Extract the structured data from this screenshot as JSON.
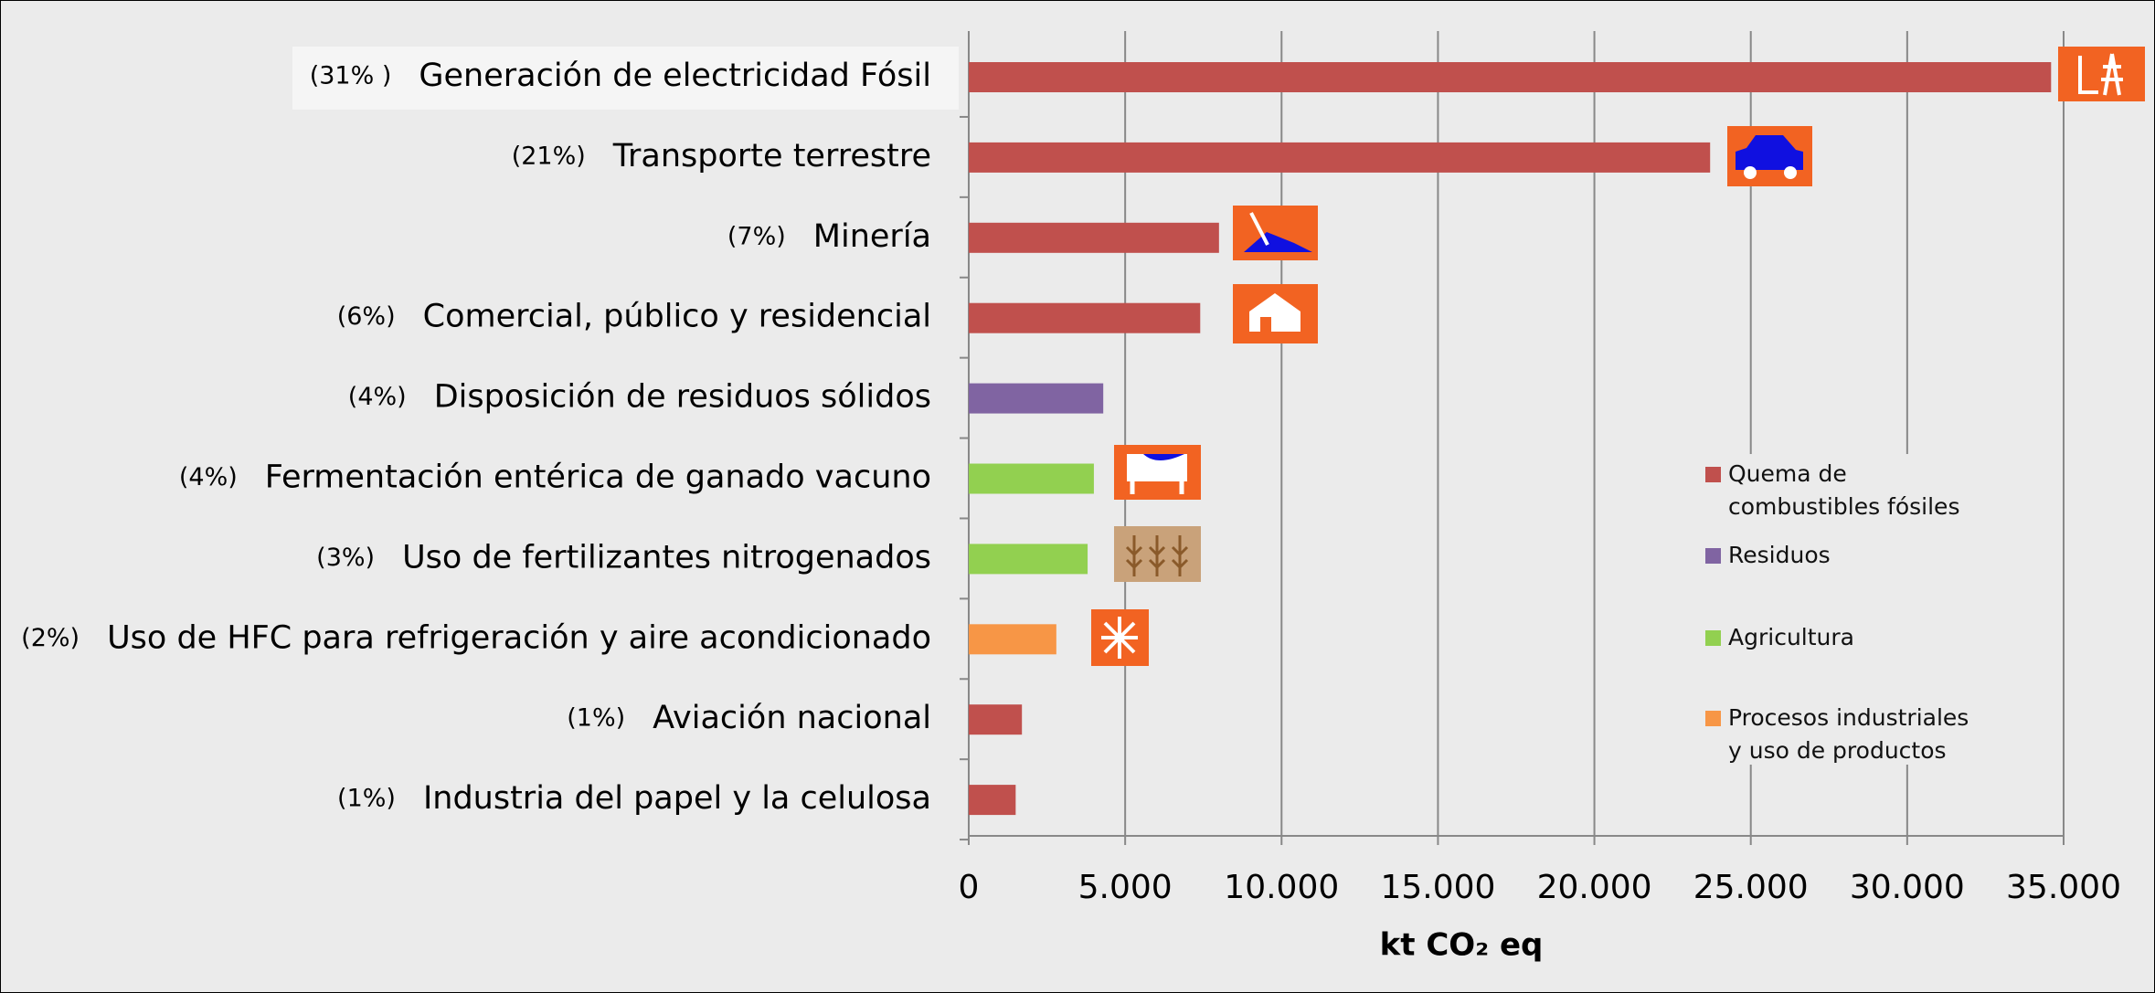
{
  "chart_data": {
    "type": "hbar",
    "categories": [
      "Generación de electricidad Fósil",
      "Transporte terrestre",
      "Minería",
      "Comercial, público y residencial",
      "Disposición de residuos sólidos",
      "Fermentación entérica de ganado vacuno",
      "Uso de fertilizantes nitrogenados",
      "Uso de HFC para refrigeración y aire acondicionado",
      "Aviación nacional",
      "Industria del papel y la celulosa"
    ],
    "percent_labels": [
      "(31% )",
      "(21%)",
      "(7%)",
      "(6%)",
      "(4%)",
      "(4%)",
      "(3%)",
      "(2%)",
      "(1%)",
      "(1%)"
    ],
    "values": [
      34600,
      23700,
      8000,
      7400,
      4300,
      4000,
      3800,
      2800,
      1700,
      1500
    ],
    "colors": [
      "#c0504d",
      "#c0504d",
      "#c0504d",
      "#c0504d",
      "#8064a2",
      "#92d050",
      "#92d050",
      "#f79646",
      "#c0504d",
      "#c0504d"
    ],
    "legend": [
      {
        "name": "Quema de combustibles fósiles",
        "color": "#c0504d"
      },
      {
        "name": "Residuos",
        "color": "#8064a2"
      },
      {
        "name": "Agricultura",
        "color": "#92d050"
      },
      {
        "name": "Procesos industriales y uso de productos",
        "color": "#f79646"
      }
    ],
    "xlim": [
      0,
      35000
    ],
    "xticks": [
      0,
      {
        "value": 5000,
        "label": "5.000"
      },
      {
        "value": 10000,
        "label": "10.000"
      },
      {
        "value": 15000,
        "label": "15.000"
      },
      {
        "value": 20000,
        "label": "20.000"
      },
      {
        "value": 25000,
        "label": "25.000"
      },
      {
        "value": 30000,
        "label": "30.000"
      },
      {
        "value": 35000,
        "label": "35.000"
      }
    ],
    "xlabel": "kt CO₂ eq",
    "grid": true
  }
}
